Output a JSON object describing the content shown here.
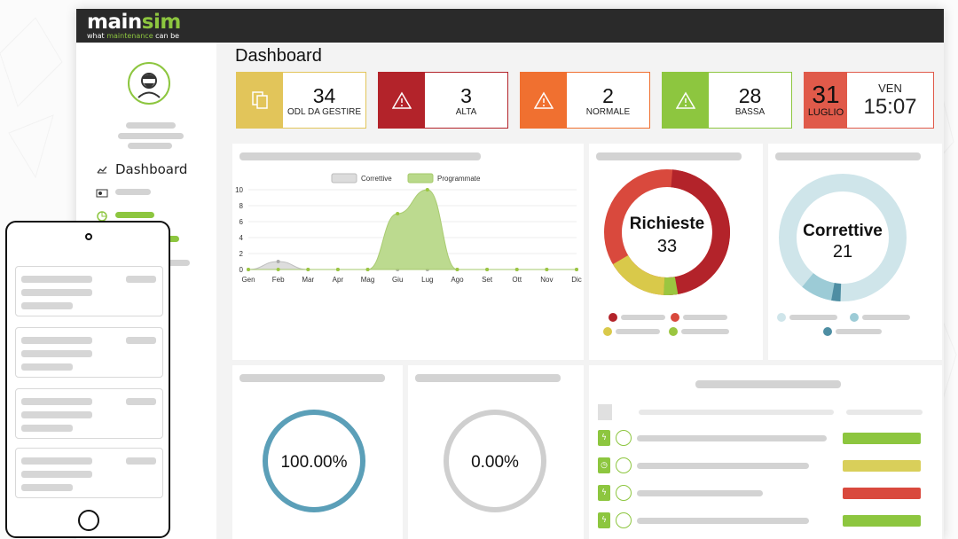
{
  "brand": {
    "name_a": "main",
    "name_b": "sim",
    "tagline_a": "what",
    "tagline_b": " maintenance ",
    "tagline_c": "can be"
  },
  "page": {
    "title": "Dashboard"
  },
  "sidebar": {
    "items": [
      {
        "label": "Dashboard",
        "icon": "chart-icon"
      }
    ]
  },
  "kpis": [
    {
      "value": "34",
      "label": "ODL DA GESTIRE",
      "color": "#e2c55a",
      "icon": "documents-icon"
    },
    {
      "value": "3",
      "label": "ALTA",
      "color": "#b3232a",
      "icon": "warning-icon"
    },
    {
      "value": "2",
      "label": "NORMALE",
      "color": "#f07030",
      "icon": "warning-icon"
    },
    {
      "value": "28",
      "label": "BASSA",
      "color": "#8dc63f",
      "icon": "warning-icon"
    }
  ],
  "date": {
    "day": "31",
    "month": "LUGLIO",
    "weekday": "VEN",
    "time": "15:07",
    "color": "#e05a4a"
  },
  "chart_data": {
    "type": "area",
    "x": [
      "Gen",
      "Feb",
      "Mar",
      "Apr",
      "Mag",
      "Giu",
      "Lug",
      "Ago",
      "Set",
      "Ott",
      "Nov",
      "Dic"
    ],
    "series": [
      {
        "name": "Correttive",
        "values": [
          0,
          1,
          0,
          0,
          0,
          0,
          0,
          0,
          0,
          0,
          0,
          0
        ],
        "color": "#dcdcdc"
      },
      {
        "name": "Programmate",
        "values": [
          0,
          0,
          0,
          0,
          0,
          7,
          10,
          0,
          0,
          0,
          0,
          0
        ],
        "color": "#b9d98a"
      }
    ],
    "yticks": [
      "0",
      "2",
      "4",
      "6",
      "8",
      "10"
    ],
    "ylim": [
      0,
      10
    ],
    "legend": "top-center"
  },
  "donuts": {
    "richieste": {
      "title": "Richieste",
      "value": "33",
      "colors": [
        "#b3232a",
        "#d9493d",
        "#d9c94a",
        "#9bc640"
      ]
    },
    "correttive": {
      "title": "Correttive",
      "value": "21",
      "colors": [
        "#cfe5ea",
        "#9ccbd6",
        "#4e8ea3"
      ]
    }
  },
  "gauges": [
    {
      "value": "100.00%",
      "color": "#5b9fb8"
    },
    {
      "value": "0.00%",
      "color": "#cfcfcf"
    }
  ],
  "list_rows": [
    {
      "badge": "ϟ",
      "status_color": "#8dc63f"
    },
    {
      "badge": "◷",
      "status_color": "#d9cf5a"
    },
    {
      "badge": "ϟ",
      "status_color": "#d9493d"
    },
    {
      "badge": "ϟ",
      "status_color": "#8dc63f"
    }
  ]
}
